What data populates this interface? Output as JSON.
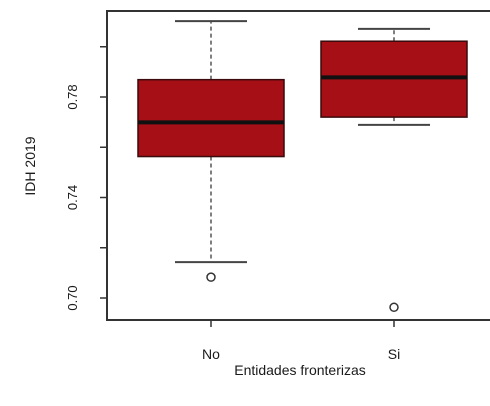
{
  "chart_data": {
    "type": "boxplot",
    "title": "",
    "xlabel": "Entidades fronterizas",
    "ylabel": "IDH 2019",
    "ylim": [
      0.692,
      0.812
    ],
    "y_ticks": [
      0.7,
      0.72,
      0.74,
      0.76,
      0.78,
      0.8
    ],
    "y_tick_labels": [
      "0.70",
      "",
      "0.74",
      "",
      "0.78",
      ""
    ],
    "categories": [
      "No",
      "Si"
    ],
    "box_color": "#a50f15",
    "boxes": [
      {
        "category": "No",
        "whisker_low": 0.7143,
        "q1": 0.7563,
        "median": 0.7699,
        "q3": 0.7869,
        "whisker_high": 0.8102,
        "outliers": [
          0.7083
        ]
      },
      {
        "category": "Si",
        "whisker_low": 0.7689,
        "q1": 0.772,
        "median": 0.7878,
        "q3": 0.8022,
        "whisker_high": 0.8071,
        "outliers": [
          0.6963
        ]
      }
    ]
  }
}
